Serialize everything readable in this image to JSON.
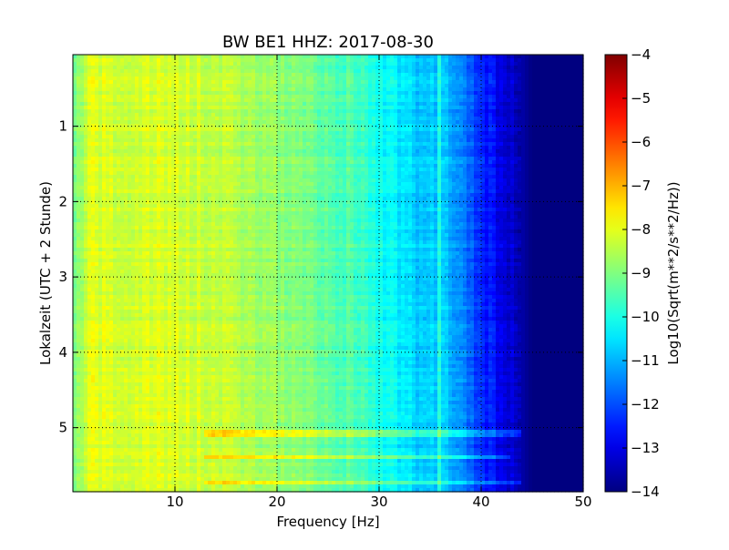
{
  "chart_data": {
    "type": "heatmap",
    "title": "BW BE1 HHZ: 2017-08-30",
    "xlabel": "Frequency [Hz]",
    "ylabel": "Lokalzeit (UTC + 2 Stunde)",
    "xlim": [
      0,
      50
    ],
    "ylim": [
      5.85,
      0.05
    ],
    "y_inverted": true,
    "grid": true,
    "x_ticks": [
      10,
      20,
      30,
      40,
      50
    ],
    "x_tick_labels": [
      "10",
      "20",
      "30",
      "40",
      "50"
    ],
    "y_ticks": [
      1,
      2,
      3,
      4,
      5
    ],
    "y_tick_labels": [
      "1",
      "2",
      "3",
      "4",
      "5"
    ],
    "colormap": "jet",
    "colorbar": {
      "label": "Log10(Sqrt(m**2/s**2/Hz))",
      "range": [
        -14,
        -4
      ],
      "ticks": [
        -4,
        -5,
        -6,
        -7,
        -8,
        -9,
        -10,
        -11,
        -12,
        -13,
        -14
      ],
      "tick_labels": [
        "−4",
        "−5",
        "−6",
        "−7",
        "−8",
        "−9",
        "−10",
        "−11",
        "−12",
        "−13",
        "−14"
      ]
    },
    "spectral_profile": {
      "frequency_hz": [
        0,
        2,
        5,
        10,
        15,
        20,
        25,
        28,
        30,
        32,
        35,
        36,
        38,
        40,
        42,
        44,
        45,
        50
      ],
      "log10_amplitude": [
        -8.6,
        -8.1,
        -8.2,
        -8.1,
        -8.4,
        -8.8,
        -9.3,
        -9.6,
        -10.0,
        -10.5,
        -10.9,
        -10.6,
        -11.4,
        -12.3,
        -13.0,
        -13.6,
        -14.0,
        -14.0
      ]
    },
    "features": [
      {
        "type": "spectral_line",
        "frequency_hz": 36,
        "note": "thin high-amplitude line near 36 Hz"
      },
      {
        "type": "horizontal_band",
        "time": 5.07,
        "freq_range": [
          13,
          45
        ]
      },
      {
        "type": "horizontal_band",
        "time": 5.38,
        "freq_range": [
          13,
          43
        ]
      },
      {
        "type": "horizontal_band",
        "time": 5.72,
        "freq_range": [
          13,
          45
        ]
      }
    ]
  }
}
